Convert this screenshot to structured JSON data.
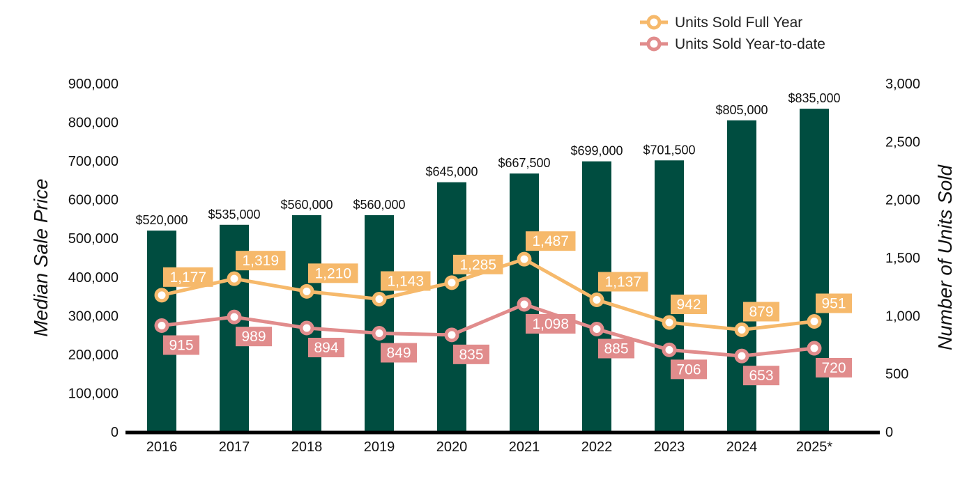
{
  "chart_data": {
    "type": "bar",
    "categories": [
      "2016",
      "2017",
      "2018",
      "2019",
      "2020",
      "2021",
      "2022",
      "2023",
      "2024",
      "2025*"
    ],
    "bar_series": {
      "name": "",
      "axis": "left",
      "values": [
        520000,
        535000,
        560000,
        560000,
        645000,
        667500,
        699000,
        701500,
        805000,
        835000
      ],
      "labels": [
        "$520,000",
        "$535,000",
        "$560,000",
        "$560,000",
        "$645,000",
        "$667,500",
        "$699,000",
        "$701,500",
        "$805,000",
        "$835,000"
      ],
      "color": "#004d40"
    },
    "line_series": [
      {
        "name": "Units Sold Full Year",
        "type": "line",
        "axis": "right",
        "values": [
          1177,
          1319,
          1210,
          1143,
          1285,
          1487,
          1137,
          942,
          879,
          951
        ],
        "labels": [
          "1,177",
          "1,319",
          "1,210",
          "1,143",
          "1,285",
          "1,487",
          "1,137",
          "942",
          "879",
          "951"
        ],
        "color": "#f6b96b"
      },
      {
        "name": "Units Sold Year-to-date",
        "type": "line",
        "axis": "right",
        "values": [
          915,
          989,
          894,
          849,
          835,
          1098,
          885,
          706,
          653,
          720
        ],
        "labels": [
          "915",
          "989",
          "894",
          "849",
          "835",
          "1,098",
          "885",
          "706",
          "653",
          "720"
        ],
        "color": "#e18c8c"
      }
    ],
    "ylabel": "Median Sale Price",
    "y2label": "Number of Units Sold",
    "ylim": [
      0,
      900000
    ],
    "y2lim": [
      0,
      3000
    ],
    "yticks": [
      0,
      100000,
      200000,
      300000,
      400000,
      500000,
      600000,
      700000,
      800000,
      900000
    ],
    "yticklabels": [
      "0",
      "100,000",
      "200,000",
      "300,000",
      "400,000",
      "500,000",
      "600,000",
      "700,000",
      "800,000",
      "900,000"
    ],
    "y2ticks": [
      0,
      500,
      1000,
      1500,
      2000,
      2500,
      3000
    ],
    "y2ticklabels": [
      "0",
      "500",
      "1,000",
      "1,500",
      "2,000",
      "2,500",
      "3,000"
    ],
    "grid": false,
    "legend_position": "top-right"
  }
}
